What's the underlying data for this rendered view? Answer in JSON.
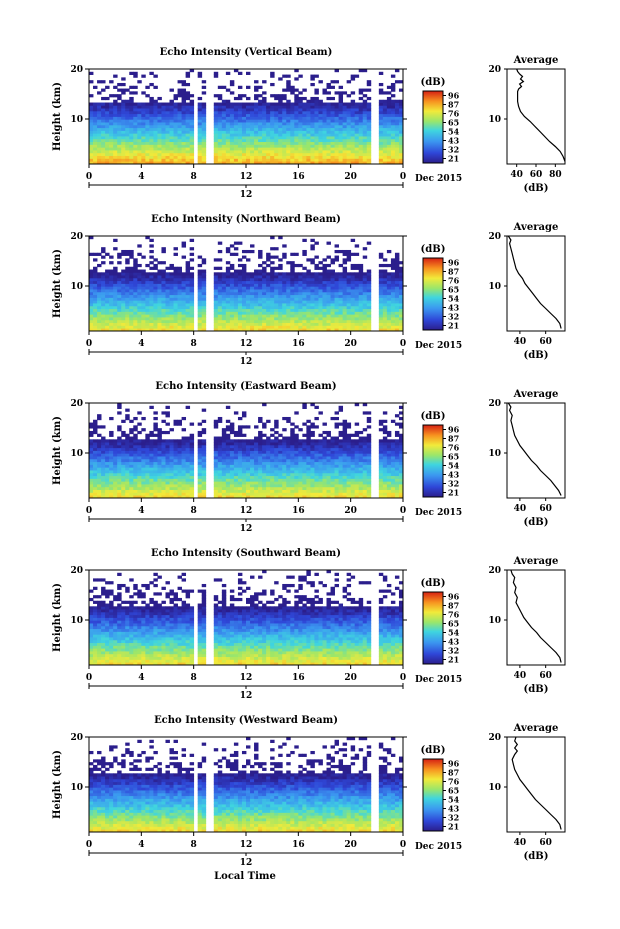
{
  "figure": {
    "bottom_label": "Local Time",
    "date_label": "Dec 2015"
  },
  "chart_data": [
    {
      "type": "heatmap",
      "title": "Echo Intensity (Vertical Beam)",
      "ylabel": "Height (km)",
      "yticks": [
        "20",
        "10"
      ],
      "ylim": [
        1,
        20
      ],
      "xticks": [
        "0",
        "4",
        "8",
        "12",
        "16",
        "20",
        "0"
      ],
      "xlim": [
        0,
        24
      ],
      "second_axis_tick": "12",
      "date": "Dec 2015",
      "colorbar": {
        "unit": "(dB)",
        "ticks": [
          "96",
          "87",
          "76",
          "65",
          "54",
          "43",
          "32",
          "21"
        ],
        "range": [
          21,
          96
        ]
      },
      "profile": {
        "title": "Average",
        "xlabel": "(dB)",
        "xticks": [
          "40",
          "60",
          "80"
        ],
        "xlim": [
          30,
          90
        ],
        "yticks": [
          "20",
          "10"
        ],
        "points": [
          [
            90,
            1.5
          ],
          [
            88,
            2.5
          ],
          [
            85,
            3.5
          ],
          [
            80,
            4.5
          ],
          [
            74,
            5.5
          ],
          [
            69,
            6.5
          ],
          [
            64,
            7.5
          ],
          [
            59,
            8.5
          ],
          [
            54,
            9.5
          ],
          [
            48,
            10.5
          ],
          [
            44,
            11.5
          ],
          [
            42,
            12.5
          ],
          [
            41,
            13.5
          ],
          [
            41,
            14.5
          ],
          [
            41,
            15.5
          ],
          [
            42,
            16
          ],
          [
            45,
            16.5
          ],
          [
            43,
            17
          ],
          [
            47,
            17.5
          ],
          [
            44,
            18
          ],
          [
            46,
            18.5
          ],
          [
            43,
            19
          ],
          [
            41,
            19.5
          ],
          [
            40,
            20
          ]
        ]
      }
    },
    {
      "type": "heatmap",
      "title": "Echo Intensity (Northward Beam)",
      "ylabel": "Height (km)",
      "yticks": [
        "20",
        "10"
      ],
      "ylim": [
        1,
        20
      ],
      "xticks": [
        "0",
        "4",
        "8",
        "12",
        "16",
        "20",
        "0"
      ],
      "xlim": [
        0,
        24
      ],
      "second_axis_tick": "12",
      "date": "Dec 2015",
      "colorbar": {
        "unit": "(dB)",
        "ticks": [
          "96",
          "87",
          "76",
          "65",
          "54",
          "43",
          "32",
          "21"
        ],
        "range": [
          21,
          96
        ]
      },
      "profile": {
        "title": "Average",
        "xlabel": "(dB)",
        "xticks": [
          "40",
          "60"
        ],
        "xlim": [
          30,
          75
        ],
        "yticks": [
          "20",
          "10"
        ],
        "points": [
          [
            72,
            1.5
          ],
          [
            71,
            2.5
          ],
          [
            68,
            3.5
          ],
          [
            64,
            4.5
          ],
          [
            60,
            5.5
          ],
          [
            56,
            6.5
          ],
          [
            53,
            7.5
          ],
          [
            50,
            8.5
          ],
          [
            47,
            9.5
          ],
          [
            44,
            10.5
          ],
          [
            42,
            11.5
          ],
          [
            39,
            12.5
          ],
          [
            37,
            13.5
          ],
          [
            36,
            14.5
          ],
          [
            35,
            15.5
          ],
          [
            34,
            16.5
          ],
          [
            33,
            17.5
          ],
          [
            32,
            18.5
          ],
          [
            33,
            19.2
          ],
          [
            31,
            20
          ]
        ]
      }
    },
    {
      "type": "heatmap",
      "title": "Echo Intensity (Eastward Beam)",
      "ylabel": "Height (km)",
      "yticks": [
        "20",
        "10"
      ],
      "ylim": [
        1,
        20
      ],
      "xticks": [
        "0",
        "4",
        "8",
        "12",
        "16",
        "20",
        "0"
      ],
      "xlim": [
        0,
        24
      ],
      "second_axis_tick": "12",
      "date": "Dec 2015",
      "colorbar": {
        "unit": "(dB)",
        "ticks": [
          "96",
          "87",
          "76",
          "65",
          "54",
          "43",
          "32",
          "21"
        ],
        "range": [
          21,
          96
        ]
      },
      "profile": {
        "title": "Average",
        "xlabel": "(dB)",
        "xticks": [
          "40",
          "60"
        ],
        "xlim": [
          30,
          75
        ],
        "yticks": [
          "20",
          "10"
        ],
        "points": [
          [
            72,
            1.5
          ],
          [
            70,
            2.5
          ],
          [
            67,
            3.5
          ],
          [
            64,
            4.5
          ],
          [
            60,
            5.5
          ],
          [
            56,
            6.5
          ],
          [
            53,
            7.5
          ],
          [
            49,
            8.5
          ],
          [
            46,
            9.5
          ],
          [
            43,
            10.5
          ],
          [
            40,
            11.5
          ],
          [
            38,
            12.5
          ],
          [
            36,
            13.5
          ],
          [
            35,
            14.5
          ],
          [
            34,
            15.5
          ],
          [
            33,
            16.5
          ],
          [
            34,
            17.5
          ],
          [
            32,
            18.5
          ],
          [
            33,
            19.2
          ],
          [
            31,
            20
          ]
        ]
      }
    },
    {
      "type": "heatmap",
      "title": "Echo Intensity (Southward Beam)",
      "ylabel": "Height (km)",
      "yticks": [
        "20",
        "10"
      ],
      "ylim": [
        1,
        20
      ],
      "xticks": [
        "0",
        "4",
        "8",
        "12",
        "16",
        "20",
        "0"
      ],
      "xlim": [
        0,
        24
      ],
      "second_axis_tick": "12",
      "date": "Dec 2015",
      "colorbar": {
        "unit": "(dB)",
        "ticks": [
          "96",
          "87",
          "76",
          "65",
          "54",
          "43",
          "32",
          "21"
        ],
        "range": [
          21,
          96
        ]
      },
      "profile": {
        "title": "Average",
        "xlabel": "(dB)",
        "xticks": [
          "40",
          "60"
        ],
        "xlim": [
          30,
          75
        ],
        "yticks": [
          "20",
          "10"
        ],
        "points": [
          [
            72,
            1.5
          ],
          [
            71,
            2.5
          ],
          [
            68,
            3.5
          ],
          [
            64,
            4.5
          ],
          [
            60,
            5.5
          ],
          [
            56,
            6.5
          ],
          [
            53,
            7.5
          ],
          [
            49,
            8.5
          ],
          [
            46,
            9.5
          ],
          [
            43,
            10.5
          ],
          [
            41,
            11.5
          ],
          [
            39,
            12.5
          ],
          [
            37,
            13.5
          ],
          [
            38,
            14.5
          ],
          [
            36,
            15.5
          ],
          [
            37,
            16.5
          ],
          [
            35,
            17.5
          ],
          [
            36,
            18.5
          ],
          [
            34,
            19.2
          ],
          [
            33,
            20
          ]
        ]
      }
    },
    {
      "type": "heatmap",
      "title": "Echo Intensity (Westward Beam)",
      "ylabel": "Height (km)",
      "yticks": [
        "20",
        "10"
      ],
      "ylim": [
        1,
        20
      ],
      "xticks": [
        "0",
        "4",
        "8",
        "12",
        "16",
        "20",
        "0"
      ],
      "xlim": [
        0,
        24
      ],
      "second_axis_tick": "12",
      "date": "Dec 2015",
      "colorbar": {
        "unit": "(dB)",
        "ticks": [
          "96",
          "87",
          "76",
          "65",
          "54",
          "43",
          "32",
          "21"
        ],
        "range": [
          21,
          96
        ]
      },
      "profile": {
        "title": "Average",
        "xlabel": "(dB)",
        "xticks": [
          "40",
          "60"
        ],
        "xlim": [
          30,
          75
        ],
        "yticks": [
          "20",
          "10"
        ],
        "points": [
          [
            72,
            1.5
          ],
          [
            71,
            2.5
          ],
          [
            68,
            3.5
          ],
          [
            64,
            4.5
          ],
          [
            60,
            5.5
          ],
          [
            56,
            6.5
          ],
          [
            52,
            7.5
          ],
          [
            49,
            8.5
          ],
          [
            46,
            9.5
          ],
          [
            43,
            10.5
          ],
          [
            40,
            11.5
          ],
          [
            38,
            12.5
          ],
          [
            36,
            13.5
          ],
          [
            35,
            14.5
          ],
          [
            34,
            15.5
          ],
          [
            36,
            16.5
          ],
          [
            38,
            17.2
          ],
          [
            36,
            17.8
          ],
          [
            38,
            18.5
          ],
          [
            36,
            19.2
          ],
          [
            37,
            20
          ]
        ]
      }
    }
  ]
}
